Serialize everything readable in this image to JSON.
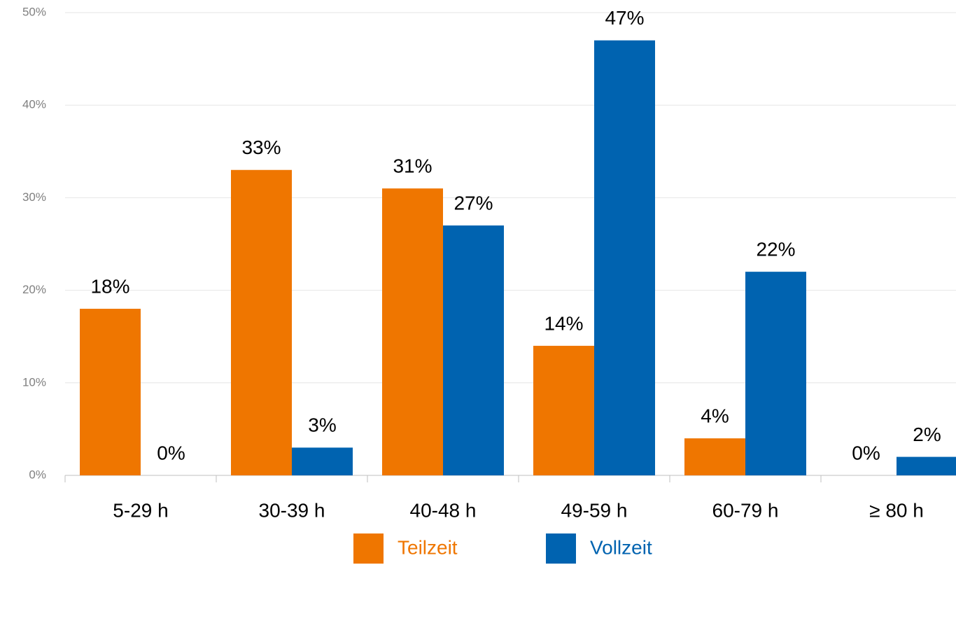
{
  "chart_data": {
    "type": "bar",
    "categories": [
      "5-29 h",
      "30-39 h",
      "40-48 h",
      "49-59 h",
      "60-79 h",
      "≥ 80 h"
    ],
    "series": [
      {
        "name": "Teilzeit",
        "color": "#ef7600",
        "values": [
          18,
          33,
          31,
          14,
          4,
          0
        ],
        "value_labels": [
          "18%",
          "33%",
          "31%",
          "14%",
          "4%",
          "0%"
        ]
      },
      {
        "name": "Vollzeit",
        "color": "#0063b0",
        "values": [
          0,
          3,
          27,
          47,
          22,
          2
        ],
        "value_labels": [
          "0%",
          "3%",
          "27%",
          "47%",
          "22%",
          "2%"
        ]
      }
    ],
    "ylim": [
      0,
      50
    ],
    "yticks": [
      {
        "value": 0,
        "label": "0%"
      },
      {
        "value": 10,
        "label": "10%"
      },
      {
        "value": 20,
        "label": "20%"
      },
      {
        "value": 30,
        "label": "30%"
      },
      {
        "value": 40,
        "label": "40%"
      },
      {
        "value": 50,
        "label": "50%"
      }
    ],
    "grid": true,
    "legend": "bottom"
  }
}
